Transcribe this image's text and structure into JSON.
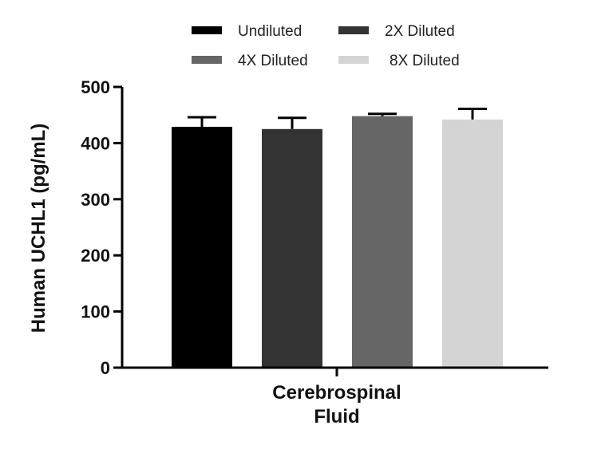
{
  "chart_data": {
    "type": "bar",
    "categories": [
      "Cerebrospinal Fluid"
    ],
    "category_label_lines": [
      "Cerebrospinal",
      "Fluid"
    ],
    "series": [
      {
        "name": "Undiluted",
        "values": [
          429
        ],
        "error": [
          17
        ],
        "color": "#000000"
      },
      {
        "name": "2X Diluted",
        "values": [
          425
        ],
        "error": [
          20
        ],
        "color": "#333333"
      },
      {
        "name": "4X Diluted",
        "values": [
          448
        ],
        "error": [
          4
        ],
        "color": "#666666"
      },
      {
        "name": "8X Diluted",
        "values": [
          442
        ],
        "error": [
          19
        ],
        "color": "#d4d4d4"
      }
    ],
    "title": "",
    "xlabel": "",
    "ylabel": "Human UCHL1 (pg/mL)",
    "ylim": [
      0,
      500
    ],
    "yticks": [
      0,
      100,
      200,
      300,
      400,
      500
    ],
    "grid": false,
    "legend_position": "top"
  }
}
